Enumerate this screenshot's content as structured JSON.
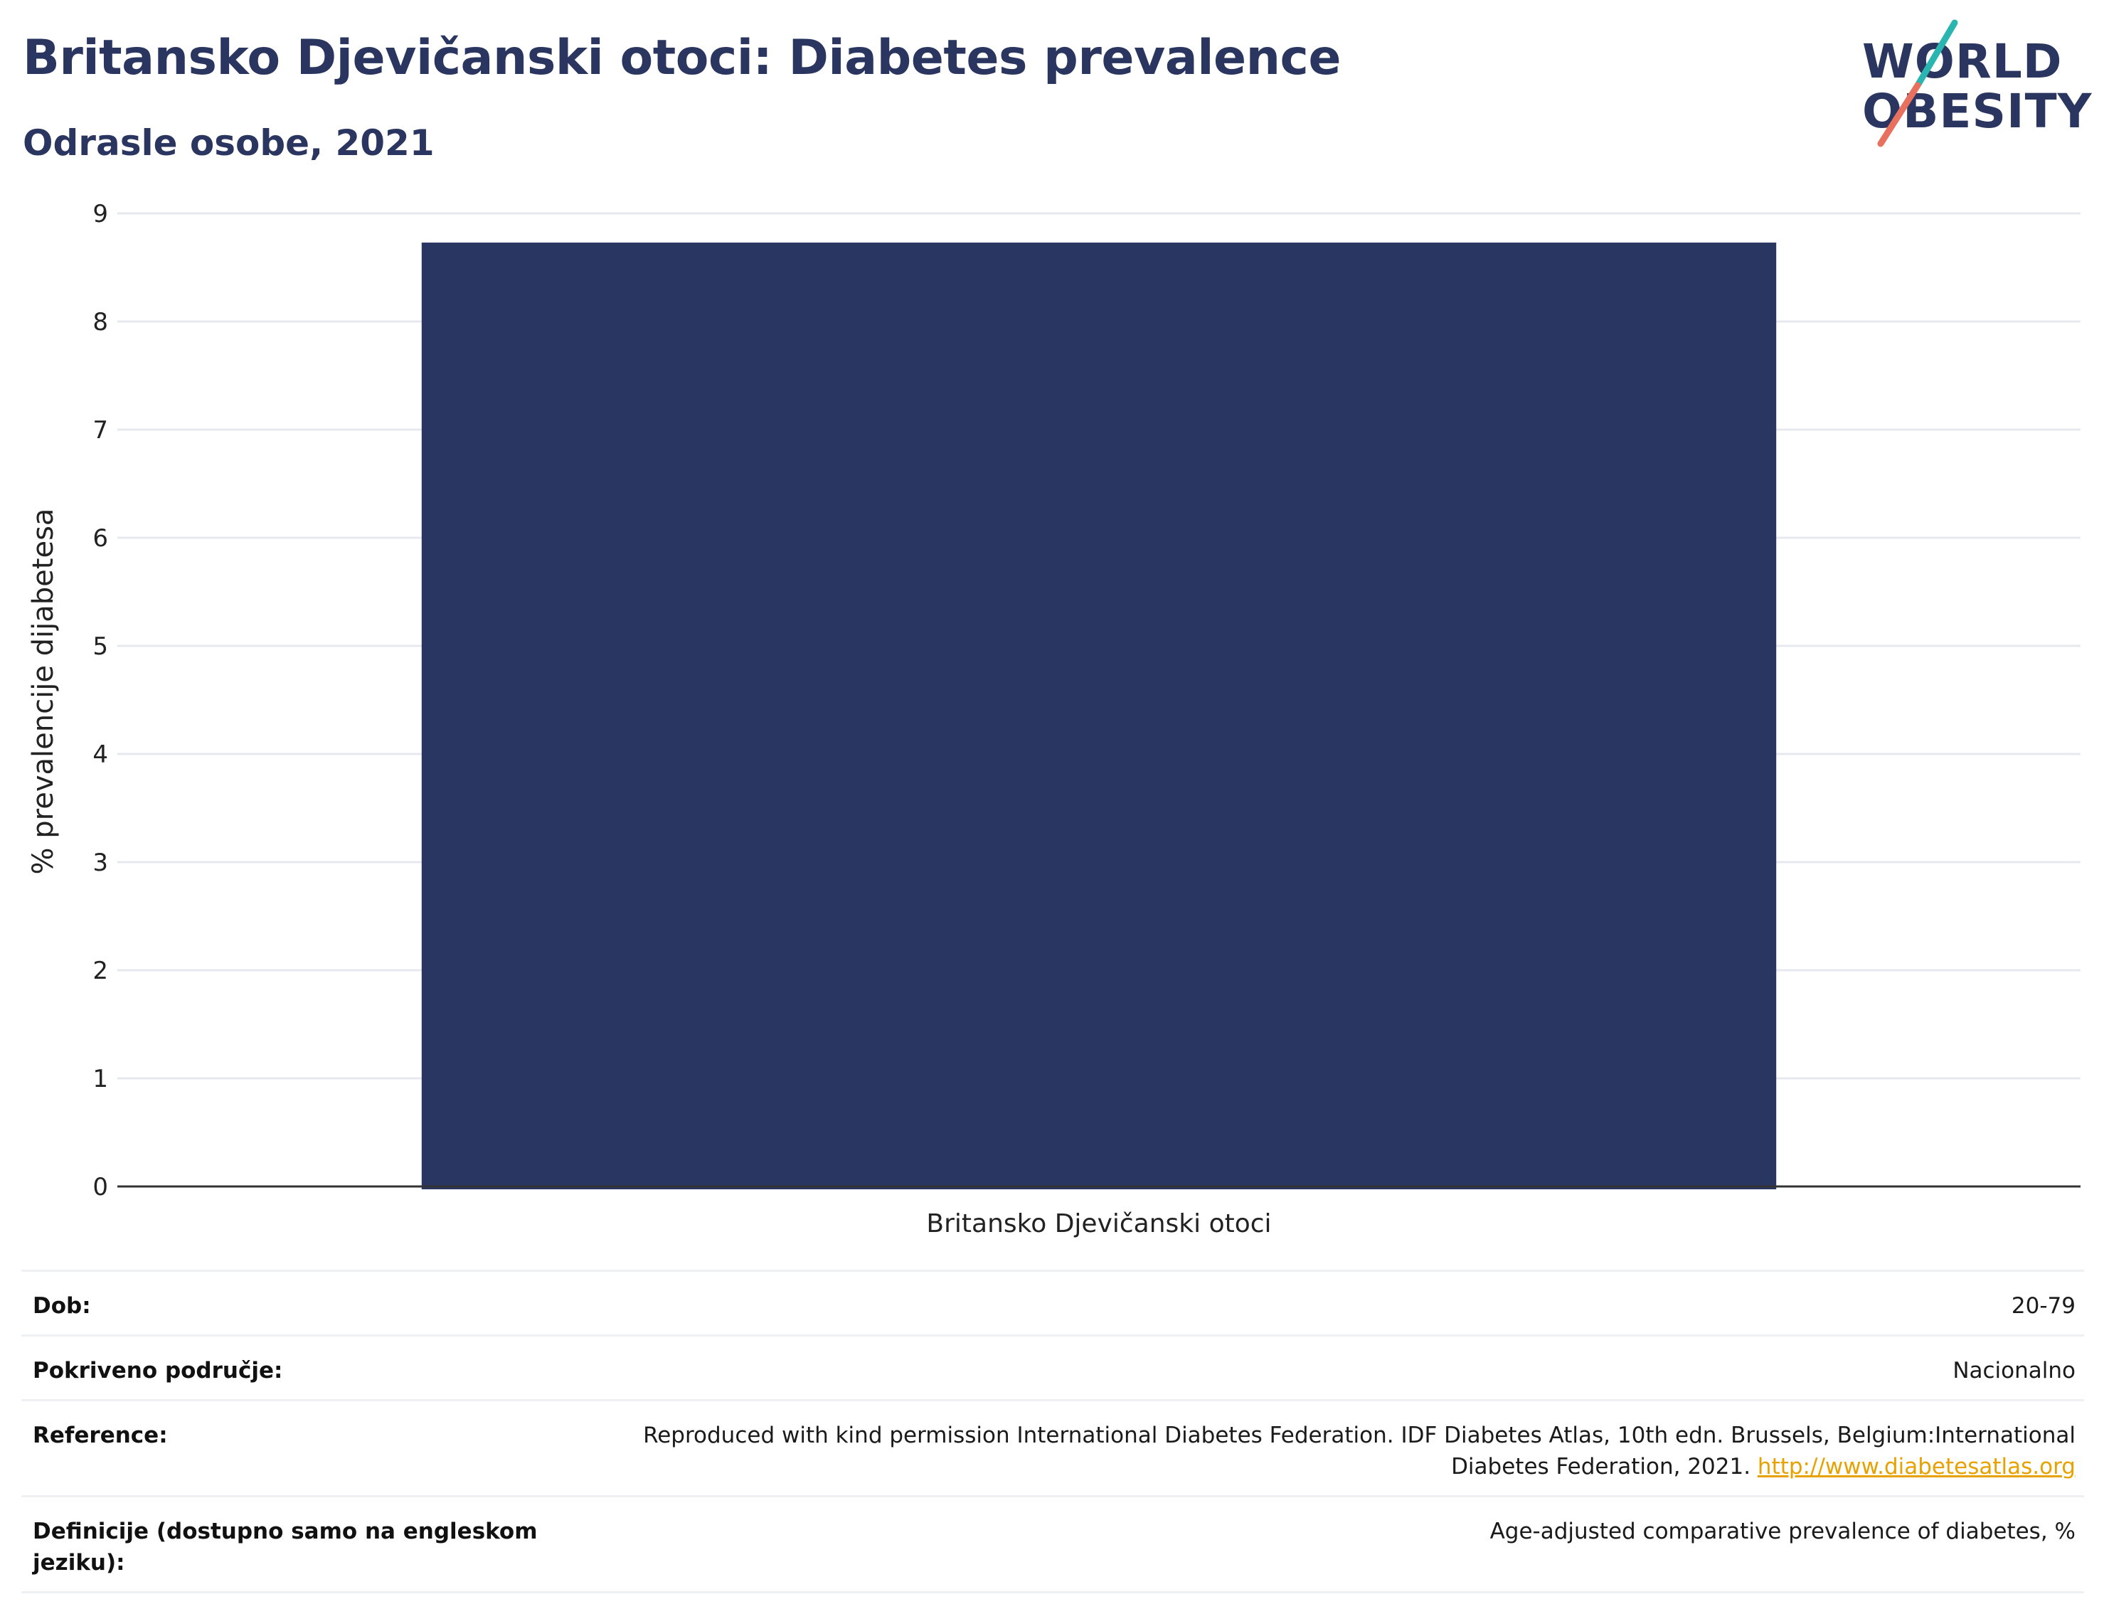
{
  "header": {
    "title": "Britansko Djevičanski otoci: Diabetes prevalence",
    "subtitle": "Odrasle osobe, 2021"
  },
  "logo": {
    "line1": "WORLD",
    "line2": "OBESITY"
  },
  "chart_data": {
    "type": "bar",
    "categories": [
      "Britansko Djevičanski otoci"
    ],
    "values": [
      8.73
    ],
    "ylabel": "% prevalencije dijabetesa",
    "xlabel": "",
    "ylim": [
      0,
      9
    ],
    "yticks": [
      "0",
      "1",
      "2",
      "3",
      "4",
      "5",
      "6",
      "7",
      "8",
      "9"
    ],
    "grid": true,
    "bar_color": "#2a3662"
  },
  "meta": {
    "rows": [
      {
        "label": "Dob:",
        "value": "20-79"
      },
      {
        "label": "Pokriveno područje:",
        "value": "Nacionalno"
      },
      {
        "label": "Reference:",
        "value": "Reproduced with kind permission International Diabetes Federation.  IDF Diabetes Atlas, 10th edn. Brussels, Belgium:International Diabetes Federation, 2021.",
        "link": "http://www.diabetesatlas.org"
      },
      {
        "label": "Definicije (dostupno samo na engleskom jeziku):",
        "value": "Age-adjusted comparative prevalence of diabetes, %"
      }
    ]
  },
  "colors": {
    "title": "#2a3560",
    "logo_teal": "#2bb5b0",
    "logo_coral": "#e8705e",
    "link": "#e8a200"
  }
}
